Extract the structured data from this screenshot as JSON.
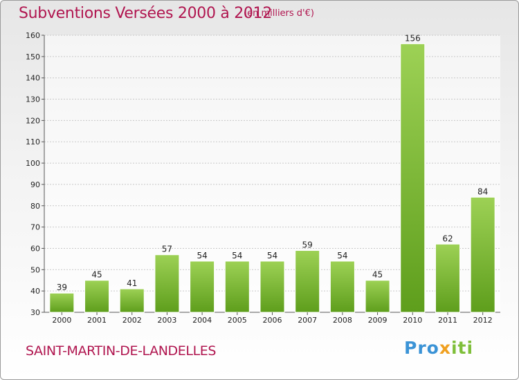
{
  "header": {
    "title": "Subventions Versées 2000 à 2012",
    "unit": "(en milliers d'€)"
  },
  "footer": {
    "commune": "SAINT-MARTIN-DE-LANDELLES",
    "logo": "Proxiti"
  },
  "colors": {
    "title": "#b0154f",
    "bar_top": "#9dd155",
    "bar_bottom": "#5e9e1c",
    "grid": "#c8c8c8"
  },
  "chart_data": {
    "type": "bar",
    "title": "Subventions Versées 2000 à 2012",
    "subtitle": "(en milliers d'€)",
    "categories": [
      "2000",
      "2001",
      "2002",
      "2003",
      "2004",
      "2005",
      "2006",
      "2007",
      "2008",
      "2009",
      "2010",
      "2011",
      "2012"
    ],
    "values": [
      39,
      45,
      41,
      57,
      54,
      54,
      54,
      59,
      54,
      45,
      156,
      62,
      84
    ],
    "ylim": [
      30,
      160
    ],
    "yticks": [
      30,
      40,
      50,
      60,
      70,
      80,
      90,
      100,
      110,
      120,
      130,
      140,
      150,
      160
    ],
    "grid": true,
    "xlabel": "",
    "ylabel": ""
  }
}
